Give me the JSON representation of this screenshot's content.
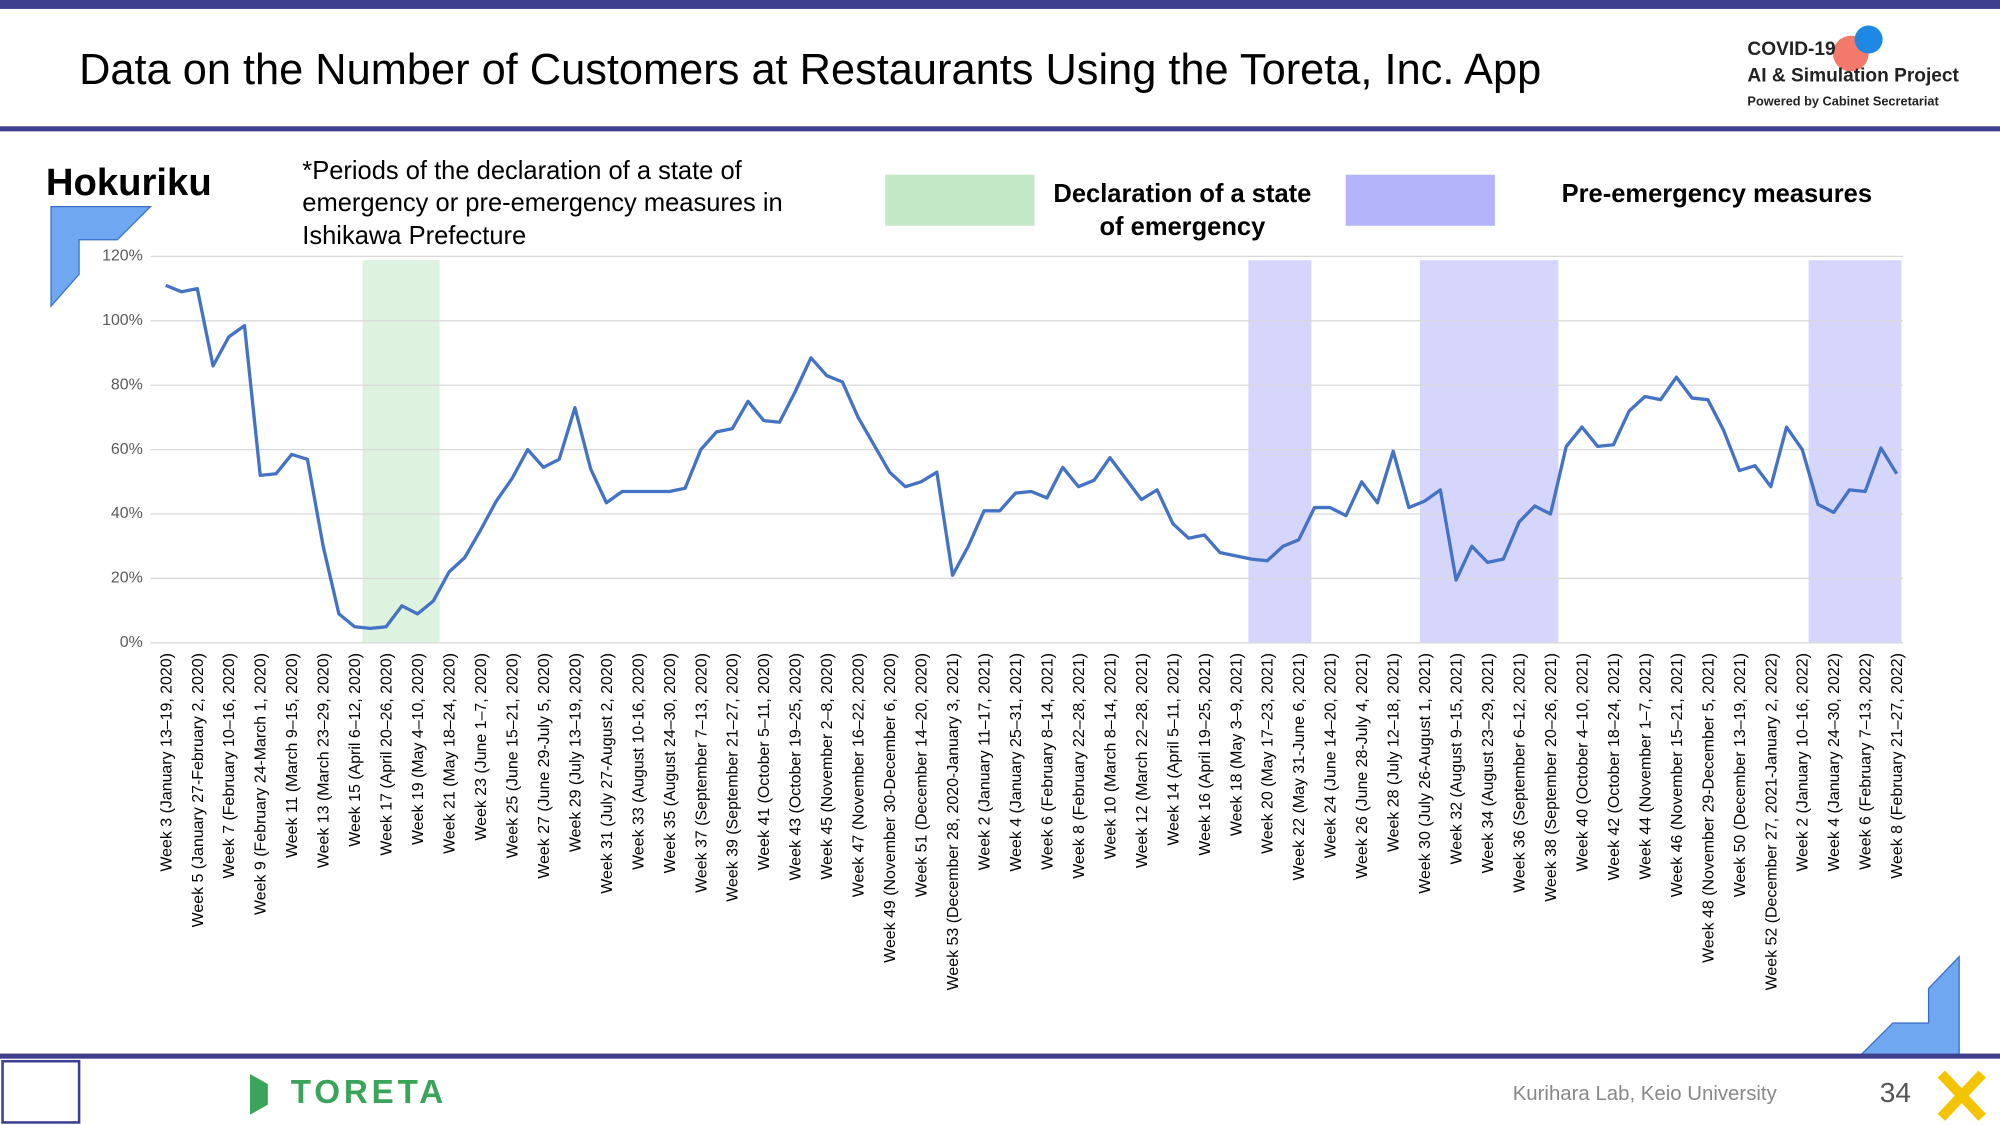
{
  "header": {
    "title": "Data on the Number of Customers at Restaurants Using the Toreta, Inc. App",
    "logo": [
      "COVID-19",
      "AI & Simulation Project",
      "Powered by Cabinet Secretariat"
    ]
  },
  "footer": {
    "brand": "TORETA",
    "credit": "Kurihara Lab, Keio University",
    "page": "34"
  },
  "chart_data": {
    "type": "line",
    "title": "Hokuriku",
    "note": [
      "*Periods of the declaration of a state of",
      "emergency or pre-emergency measures in",
      "Ishikawa Prefecture"
    ],
    "categories": [
      "Week 3 (January 13–19, 2020)",
      null,
      "Week 5 (January 27-February 2, 2020)",
      null,
      "Week 7 (February 10–16, 2020)",
      null,
      "Week 9 (February 24-March 1, 2020)",
      null,
      "Week 11 (March 9–15, 2020)",
      null,
      "Week 13 (March 23–29, 2020)",
      null,
      "Week 15 (April 6–12, 2020)",
      null,
      "Week 17 (April 20–26, 2020)",
      null,
      "Week 19 (May 4–10, 2020)",
      null,
      "Week 21 (May 18–24, 2020)",
      null,
      "Week 23 (June 1–7, 2020)",
      null,
      "Week 25 (June 15–21, 2020)",
      null,
      "Week 27 (June 29-July 5, 2020)",
      null,
      "Week 29 (July 13–19, 2020)",
      null,
      "Week 31 (July 27-August 2, 2020)",
      null,
      "Week 33 (August 10-16, 2020)",
      null,
      "Week 35 (August 24–30, 2020)",
      null,
      "Week 37 (September 7–13, 2020)",
      null,
      "Week 39 (September 21–27, 2020)",
      null,
      "Week 41 (October 5–11, 2020)",
      null,
      "Week 43 (October 19–25, 2020)",
      null,
      "Week 45 (November 2–8, 2020)",
      null,
      "Week 47 (November 16–22, 2020)",
      null,
      "Week 49 (November 30-December 6, 2020)",
      null,
      "Week 51 (December 14–20, 2020)",
      null,
      "Week 53 (December 28, 2020-January 3, 2021)",
      null,
      "Week 2 (January 11–17, 2021)",
      null,
      "Week 4 (January 25–31, 2021)",
      null,
      "Week 6 (February 8–14, 2021)",
      null,
      "Week 8 (February 22–28, 2021)",
      null,
      "Week 10 (March 8–14, 2021)",
      null,
      "Week 12 (March 22–28, 2021)",
      null,
      "Week 14 (April 5–11, 2021)",
      null,
      "Week 16 (April 19–25, 2021)",
      null,
      "Week 18 (May 3–9, 2021)",
      null,
      "Week 20 (May 17–23, 2021)",
      null,
      "Week 22 (May 31-June 6, 2021)",
      null,
      "Week 24 (June 14–20, 2021)",
      null,
      "Week 26 (June 28-July 4, 2021)",
      null,
      "Week 28 (July 12–18, 2021)",
      null,
      "Week 30 (July 26-August 1, 2021)",
      null,
      "Week 32 (August 9–15, 2021)",
      null,
      "Week 34 (August 23–29, 2021)",
      null,
      "Week 36 (September 6–12, 2021)",
      null,
      "Week 38 (September 20–26, 2021)",
      null,
      "Week 40 (October 4–10, 2021)",
      null,
      "Week 42 (October 18–24, 2021)",
      null,
      "Week 44 (November 1–7, 2021)",
      null,
      "Week 46 (November 15–21, 2021)",
      null,
      "Week 48 (November 29-December 5, 2021)",
      null,
      "Week 50 (December 13–19, 2021)",
      null,
      "Week 52 (December 27, 2021-January 2, 2022)",
      null,
      "Week 2 (January 10–16, 2022)",
      null,
      "Week 4 (January 24–30, 2022)",
      null,
      "Week 6 (February 7–13, 2022)",
      null,
      "Week 8 (February 21–27, 2022)"
    ],
    "series": [
      {
        "color": "#4472c4",
        "values": [
          111,
          109,
          110,
          86,
          95,
          98.5,
          52,
          52.5,
          58.5,
          57,
          30,
          9,
          5,
          4.5,
          5,
          11.5,
          9,
          13,
          22,
          26.5,
          35,
          44,
          51,
          60,
          54.5,
          57,
          73,
          54,
          43.5,
          47,
          47,
          47,
          47,
          48,
          60,
          65.5,
          66.5,
          75,
          69,
          68.5,
          78,
          88.5,
          83,
          81,
          70,
          61.5,
          53,
          48.5,
          50,
          53,
          21,
          30,
          41,
          41,
          46.5,
          47,
          45,
          54.5,
          48.5,
          50.5,
          57.5,
          51,
          44.5,
          47.5,
          37,
          32.5,
          33.5,
          28,
          27,
          26,
          25.5,
          30,
          32,
          42,
          42,
          39.5,
          50,
          43.5,
          59.5,
          42,
          44,
          47.5,
          19.5,
          30,
          25,
          26,
          37.5,
          42.5,
          40,
          61,
          67,
          61,
          61.5,
          72,
          76.5,
          75.5,
          82.5,
          76,
          75.5,
          66,
          53.5,
          55,
          48.5,
          67,
          60,
          43,
          40.5,
          47.5,
          47,
          60.5,
          52.5
        ]
      }
    ],
    "bands": [
      {
        "name": [
          "Declaration of a state",
          "of emergency"
        ],
        "color": "#c3e8c6",
        "ranges": [
          [
            12.5,
            17.4
          ]
        ]
      },
      {
        "name": [
          "Pre-emergency measures"
        ],
        "color": "#b4b4fb",
        "ranges": [
          [
            68.8,
            72.8
          ],
          [
            79.7,
            88.5
          ],
          [
            104.4,
            110.3
          ]
        ]
      }
    ],
    "ylim": [
      0,
      120
    ],
    "yticks": [
      {
        "value": 0,
        "label": "0%"
      },
      {
        "value": 20,
        "label": "20%"
      },
      {
        "value": 40,
        "label": "40%"
      },
      {
        "value": 60,
        "label": "60%"
      },
      {
        "value": 80,
        "label": "80%"
      },
      {
        "value": 100,
        "label": "100%"
      },
      {
        "value": 120,
        "label": "120%"
      }
    ],
    "grid": true
  }
}
